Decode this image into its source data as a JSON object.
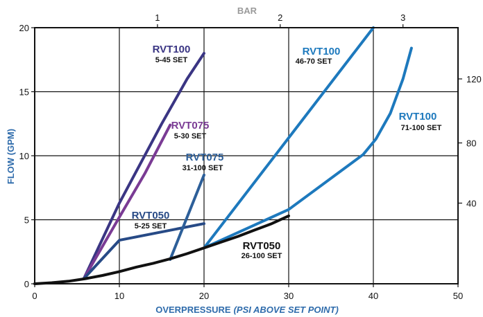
{
  "colors": {
    "axis_blue": "#2e6bab",
    "curve_black": "#111111",
    "rvt100_low": "#3a3583",
    "rvt075_low": "#7a3b94",
    "rvt050_low": "#274a86",
    "rvt075_high": "#2d5f99",
    "rvt100_high": "#1d79bd"
  },
  "chart_data": {
    "type": "line",
    "title": "",
    "xlabel": "OVERPRESSURE",
    "xlabel_note": "(PSI ABOVE SET POINT)",
    "ylabel": "FLOW (GPM)",
    "top_axis_label": "BAR",
    "xlim": [
      0,
      50
    ],
    "ylim": [
      0,
      20
    ],
    "x_ticks": [
      "0",
      "10",
      "20",
      "30",
      "40",
      "50"
    ],
    "y_ticks": [
      "0",
      "5",
      "10",
      "15",
      "20"
    ],
    "top_ticks": [
      {
        "label": "1",
        "psi": 14.5
      },
      {
        "label": "2",
        "psi": 29
      },
      {
        "label": "3",
        "psi": 43.5
      }
    ],
    "right_ticks": [
      {
        "label": "40",
        "flow": 6.3
      },
      {
        "label": "80",
        "flow": 11.0
      },
      {
        "label": "120",
        "flow": 16.0
      }
    ],
    "grid": true,
    "series": [
      {
        "label": "RVT100",
        "sub": "5-45 SET",
        "color_key": "rvt100_low",
        "x": [
          5.8,
          10,
          15,
          18,
          20
        ],
        "y": [
          0.4,
          6.3,
          12.5,
          16,
          18
        ]
      },
      {
        "label": "RVT075",
        "sub": "5-30 SET",
        "color_key": "rvt075_low",
        "x": [
          5.8,
          10,
          13,
          16
        ],
        "y": [
          0.4,
          5.2,
          8.6,
          12.4
        ]
      },
      {
        "label": "RVT050",
        "sub": "5-25 SET",
        "color_key": "rvt050_low",
        "x": [
          5.8,
          10,
          20
        ],
        "y": [
          0.4,
          3.4,
          4.7
        ]
      },
      {
        "label": "RVT075",
        "sub": "31-100 SET",
        "color_key": "rvt075_high",
        "x": [
          16,
          20
        ],
        "y": [
          1.9,
          8.5
        ]
      },
      {
        "label": "RVT100",
        "sub": "46-70 SET",
        "color_key": "rvt100_high",
        "x": [
          20,
          30,
          40
        ],
        "y": [
          2.8,
          11.4,
          20
        ]
      },
      {
        "label": "RVT100",
        "sub": "71-100 SET",
        "color_key": "rvt100_high",
        "x": [
          20,
          30,
          38.8,
          40.3,
          42,
          43.5,
          44.5
        ],
        "y": [
          2.8,
          5.8,
          10.1,
          11.3,
          13.3,
          16,
          18.4
        ]
      },
      {
        "label": "RVT050",
        "sub": "26-100 SET",
        "color_key": "curve_black",
        "x": [
          0,
          2,
          4,
          6,
          8,
          10,
          12,
          14,
          16,
          18,
          20,
          22,
          24,
          26,
          28,
          30
        ],
        "y": [
          0,
          0.08,
          0.2,
          0.4,
          0.65,
          0.95,
          1.3,
          1.6,
          1.95,
          2.35,
          2.8,
          3.25,
          3.7,
          4.2,
          4.7,
          5.3
        ]
      }
    ]
  }
}
